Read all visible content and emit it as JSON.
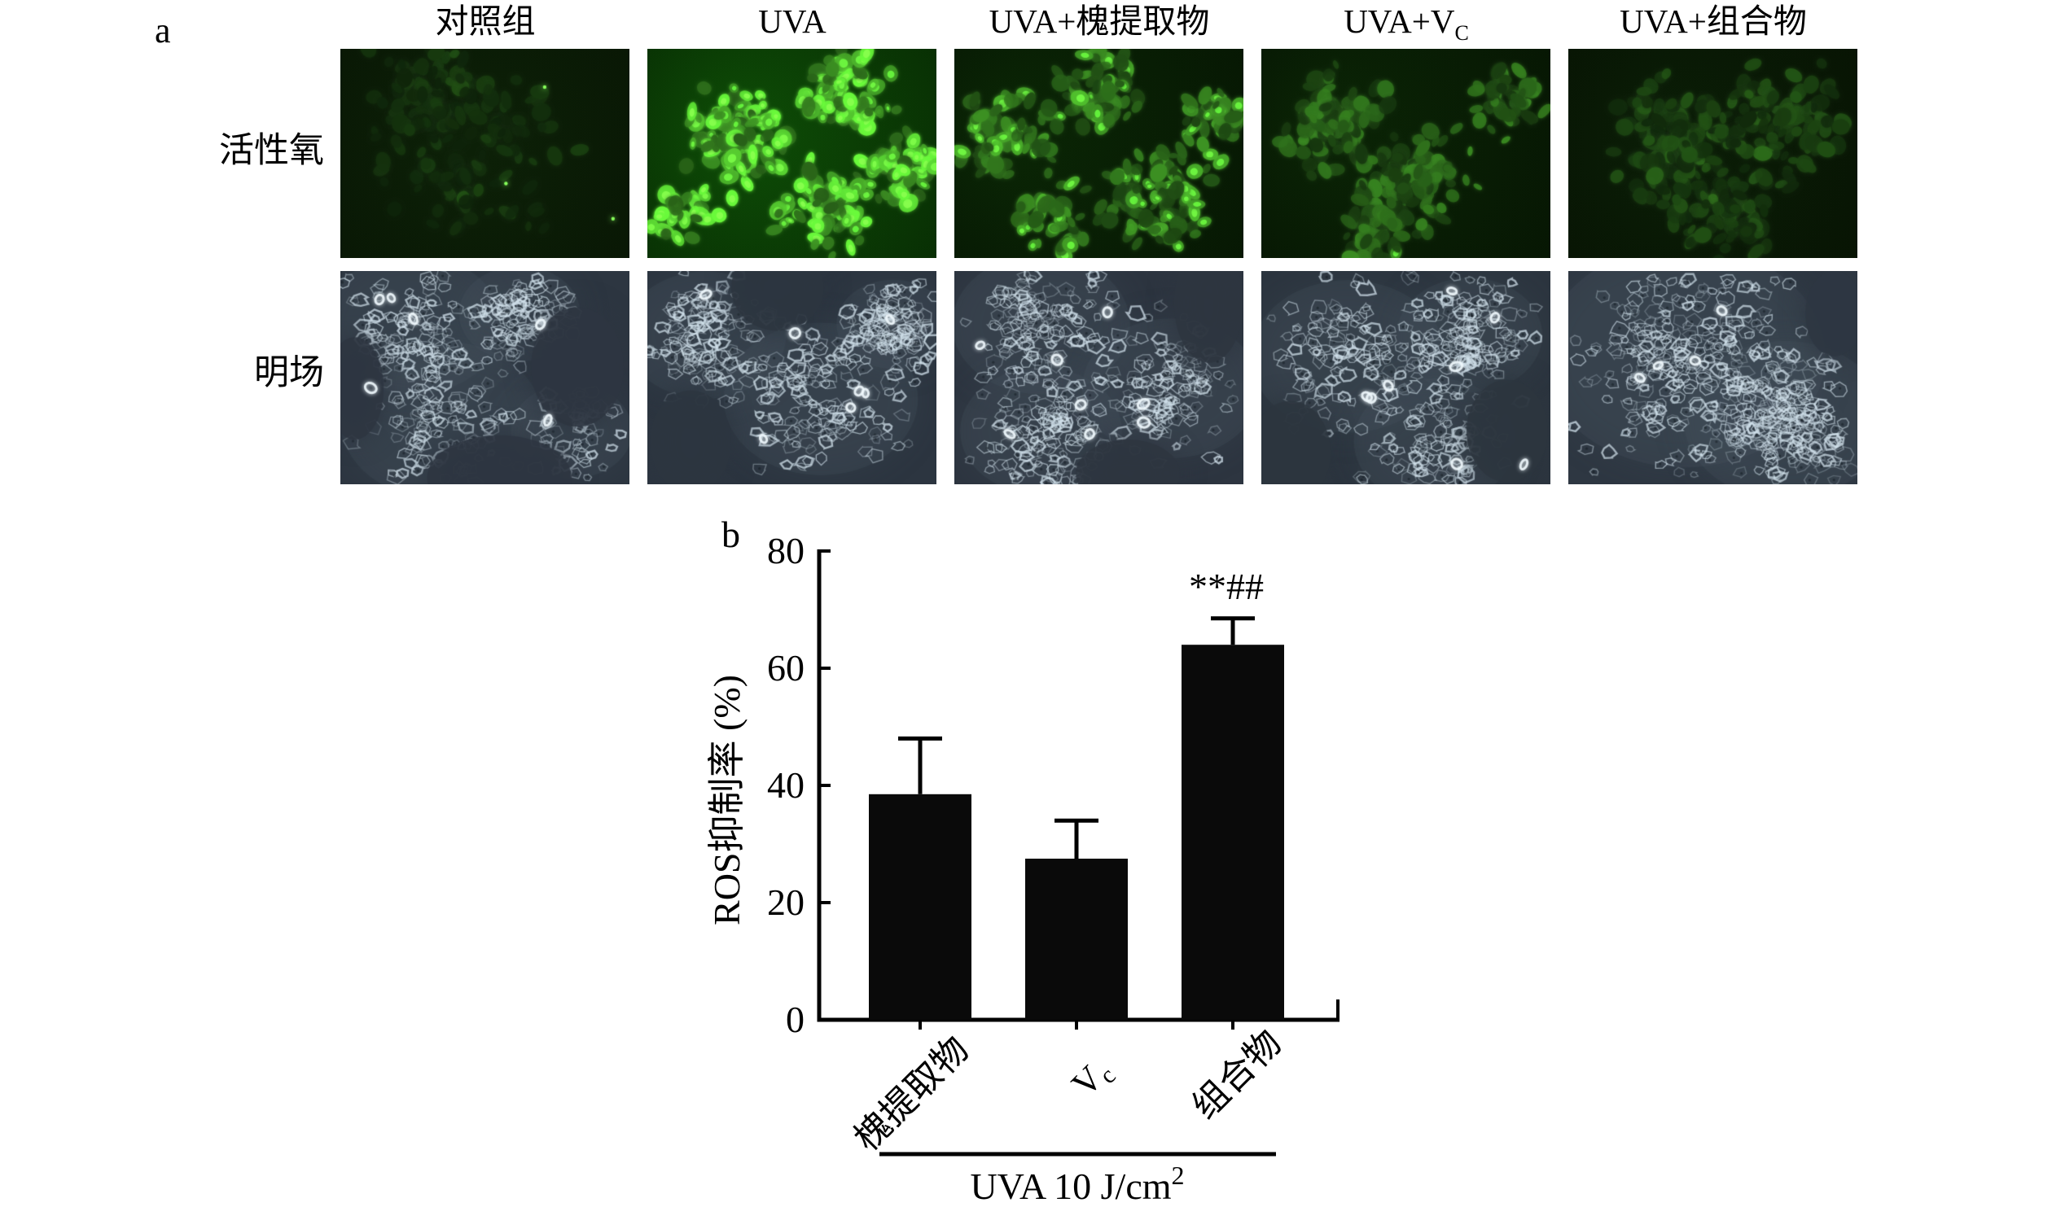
{
  "figure": {
    "panel_a_label": "a",
    "panel_b_label": "b",
    "columns": [
      {
        "label": "对照组"
      },
      {
        "label": "UVA"
      },
      {
        "label": "UVA+槐提取物"
      },
      {
        "label": "UVA+V",
        "sub": "C"
      },
      {
        "label": "UVA+组合物"
      }
    ],
    "rows": [
      {
        "label": "活性氧"
      },
      {
        "label": "明场"
      }
    ]
  },
  "chart_data": {
    "type": "bar",
    "title": "",
    "categories": [
      "槐提取物",
      "Vc",
      "组合物"
    ],
    "categories_rich": [
      {
        "base": "槐提取物"
      },
      {
        "base": "V",
        "sub": "c"
      },
      {
        "base": "组合物"
      }
    ],
    "values": [
      38.5,
      27.5,
      64
    ],
    "errors_plus": [
      9.5,
      6.5,
      4.5
    ],
    "ylabel": "ROS抑制率 (%)",
    "xlabel": "",
    "ylim": [
      0,
      80
    ],
    "yticks": [
      0,
      20,
      40,
      60,
      80
    ],
    "grid": false,
    "legend": "none",
    "bar_color": "#0a0a0a",
    "annotation": {
      "bar_index": 2,
      "text": "**##"
    },
    "group_label": {
      "text": "UVA 10 J/cm",
      "sup": "2"
    }
  },
  "micrographs": {
    "fluorescence": [
      {
        "kind": "fluor",
        "seed": 11,
        "bg_inner": "#0c2007",
        "bg_outer": "#081504",
        "brightness": 0.13,
        "count": 180,
        "specks": 3,
        "clusters": [
          [
            0.45,
            0.45,
            0.3,
            1
          ],
          [
            0.3,
            0.2,
            0.18,
            0.6
          ]
        ]
      },
      {
        "kind": "fluor",
        "seed": 23,
        "bg_inner": "#0d4a06",
        "bg_outer": "#072803",
        "brightness": 1.0,
        "count": 360,
        "specks": 0,
        "clusters": [
          [
            0.33,
            0.4,
            0.16,
            3
          ],
          [
            0.7,
            0.22,
            0.14,
            2
          ],
          [
            0.62,
            0.75,
            0.15,
            2
          ],
          [
            0.12,
            0.78,
            0.1,
            1
          ],
          [
            0.88,
            0.55,
            0.12,
            1.5
          ]
        ]
      },
      {
        "kind": "fluor",
        "seed": 37,
        "bg_inner": "#0a2505",
        "bg_outer": "#061503",
        "brightness": 0.62,
        "count": 330,
        "specks": 0,
        "clusters": [
          [
            0.18,
            0.4,
            0.14,
            2
          ],
          [
            0.5,
            0.2,
            0.13,
            1.5
          ],
          [
            0.72,
            0.72,
            0.16,
            2
          ],
          [
            0.35,
            0.8,
            0.12,
            1
          ],
          [
            0.9,
            0.35,
            0.1,
            1
          ]
        ]
      },
      {
        "kind": "fluor",
        "seed": 49,
        "bg_inner": "#0a2305",
        "bg_outer": "#061403",
        "brightness": 0.42,
        "count": 310,
        "specks": 0,
        "clusters": [
          [
            0.25,
            0.35,
            0.15,
            2
          ],
          [
            0.55,
            0.6,
            0.16,
            2
          ],
          [
            0.85,
            0.25,
            0.12,
            1
          ],
          [
            0.4,
            0.85,
            0.12,
            1
          ]
        ]
      },
      {
        "kind": "fluor",
        "seed": 61,
        "bg_inner": "#0a1d06",
        "bg_outer": "#071203",
        "brightness": 0.22,
        "count": 300,
        "specks": 0,
        "clusters": [
          [
            0.35,
            0.45,
            0.2,
            2
          ],
          [
            0.75,
            0.35,
            0.18,
            1.5
          ],
          [
            0.55,
            0.8,
            0.15,
            1
          ]
        ]
      }
    ],
    "brightfield": [
      {
        "kind": "bf",
        "seed": 101,
        "bg": "#2d3641",
        "count": 390,
        "rings": 6,
        "clusters": [
          [
            0.25,
            0.25,
            0.22,
            2
          ],
          [
            0.62,
            0.2,
            0.15,
            1.5
          ],
          [
            0.35,
            0.7,
            0.25,
            2
          ],
          [
            0.8,
            0.75,
            0.15,
            1
          ]
        ],
        "voids": [
          [
            0.82,
            0.45,
            0.16,
            0.14
          ],
          [
            0.05,
            0.55,
            0.1,
            0.12
          ],
          [
            0.55,
            0.97,
            0.25,
            0.1
          ]
        ]
      },
      {
        "kind": "bf",
        "seed": 102,
        "bg": "#2c3540",
        "count": 400,
        "rings": 7,
        "clusters": [
          [
            0.2,
            0.3,
            0.2,
            2
          ],
          [
            0.6,
            0.6,
            0.24,
            2
          ],
          [
            0.85,
            0.25,
            0.14,
            1.5
          ]
        ],
        "voids": [
          [
            0.15,
            0.8,
            0.14,
            0.12
          ],
          [
            0.45,
            0.08,
            0.16,
            0.1
          ]
        ]
      },
      {
        "kind": "bf",
        "seed": 103,
        "bg": "#2d3540",
        "count": 400,
        "rings": 8,
        "clusters": [
          [
            0.3,
            0.25,
            0.22,
            2
          ],
          [
            0.3,
            0.75,
            0.2,
            2
          ],
          [
            0.75,
            0.55,
            0.22,
            2
          ]
        ],
        "voids": [
          [
            0.88,
            0.15,
            0.12,
            0.14
          ],
          [
            0.6,
            0.95,
            0.18,
            0.08
          ]
        ]
      },
      {
        "kind": "bf",
        "seed": 104,
        "bg": "#2c353f",
        "count": 380,
        "rings": 8,
        "clusters": [
          [
            0.3,
            0.4,
            0.24,
            2
          ],
          [
            0.72,
            0.3,
            0.18,
            2
          ],
          [
            0.6,
            0.8,
            0.2,
            1.5
          ]
        ],
        "voids": [
          [
            0.1,
            0.85,
            0.14,
            0.12
          ],
          [
            0.85,
            0.75,
            0.14,
            0.12
          ]
        ]
      },
      {
        "kind": "bf",
        "seed": 105,
        "bg": "#2e3742",
        "count": 520,
        "rings": 4,
        "clusters": [
          [
            0.4,
            0.4,
            0.35,
            2
          ],
          [
            0.75,
            0.7,
            0.25,
            2
          ]
        ],
        "voids": [
          [
            0.92,
            0.2,
            0.1,
            0.1
          ]
        ]
      }
    ]
  }
}
